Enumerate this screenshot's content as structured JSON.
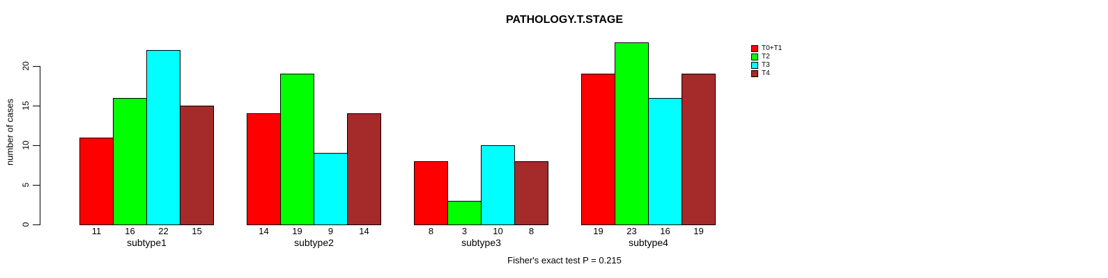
{
  "chart_data": {
    "type": "bar",
    "title": "PATHOLOGY.T.STAGE",
    "xlabel": "",
    "ylabel": "number of cases",
    "categories": [
      "subtype1",
      "subtype2",
      "subtype3",
      "subtype4"
    ],
    "series": [
      {
        "name": "T0+T1",
        "color": "#FF0000",
        "values": [
          11,
          14,
          8,
          19
        ]
      },
      {
        "name": "T2",
        "color": "#00FF00",
        "values": [
          16,
          19,
          3,
          23
        ]
      },
      {
        "name": "T3",
        "color": "#00FFFF",
        "values": [
          22,
          9,
          10,
          16
        ]
      },
      {
        "name": "T4",
        "color": "#A52A2A",
        "values": [
          15,
          14,
          8,
          19
        ]
      }
    ],
    "yticks": [
      0,
      5,
      10,
      15,
      20
    ],
    "ylim": [
      0,
      23
    ],
    "grid": false,
    "bar_value_labels": true,
    "legend_position": "top-right",
    "annotation": "Fisher's exact test P = 0.215"
  }
}
